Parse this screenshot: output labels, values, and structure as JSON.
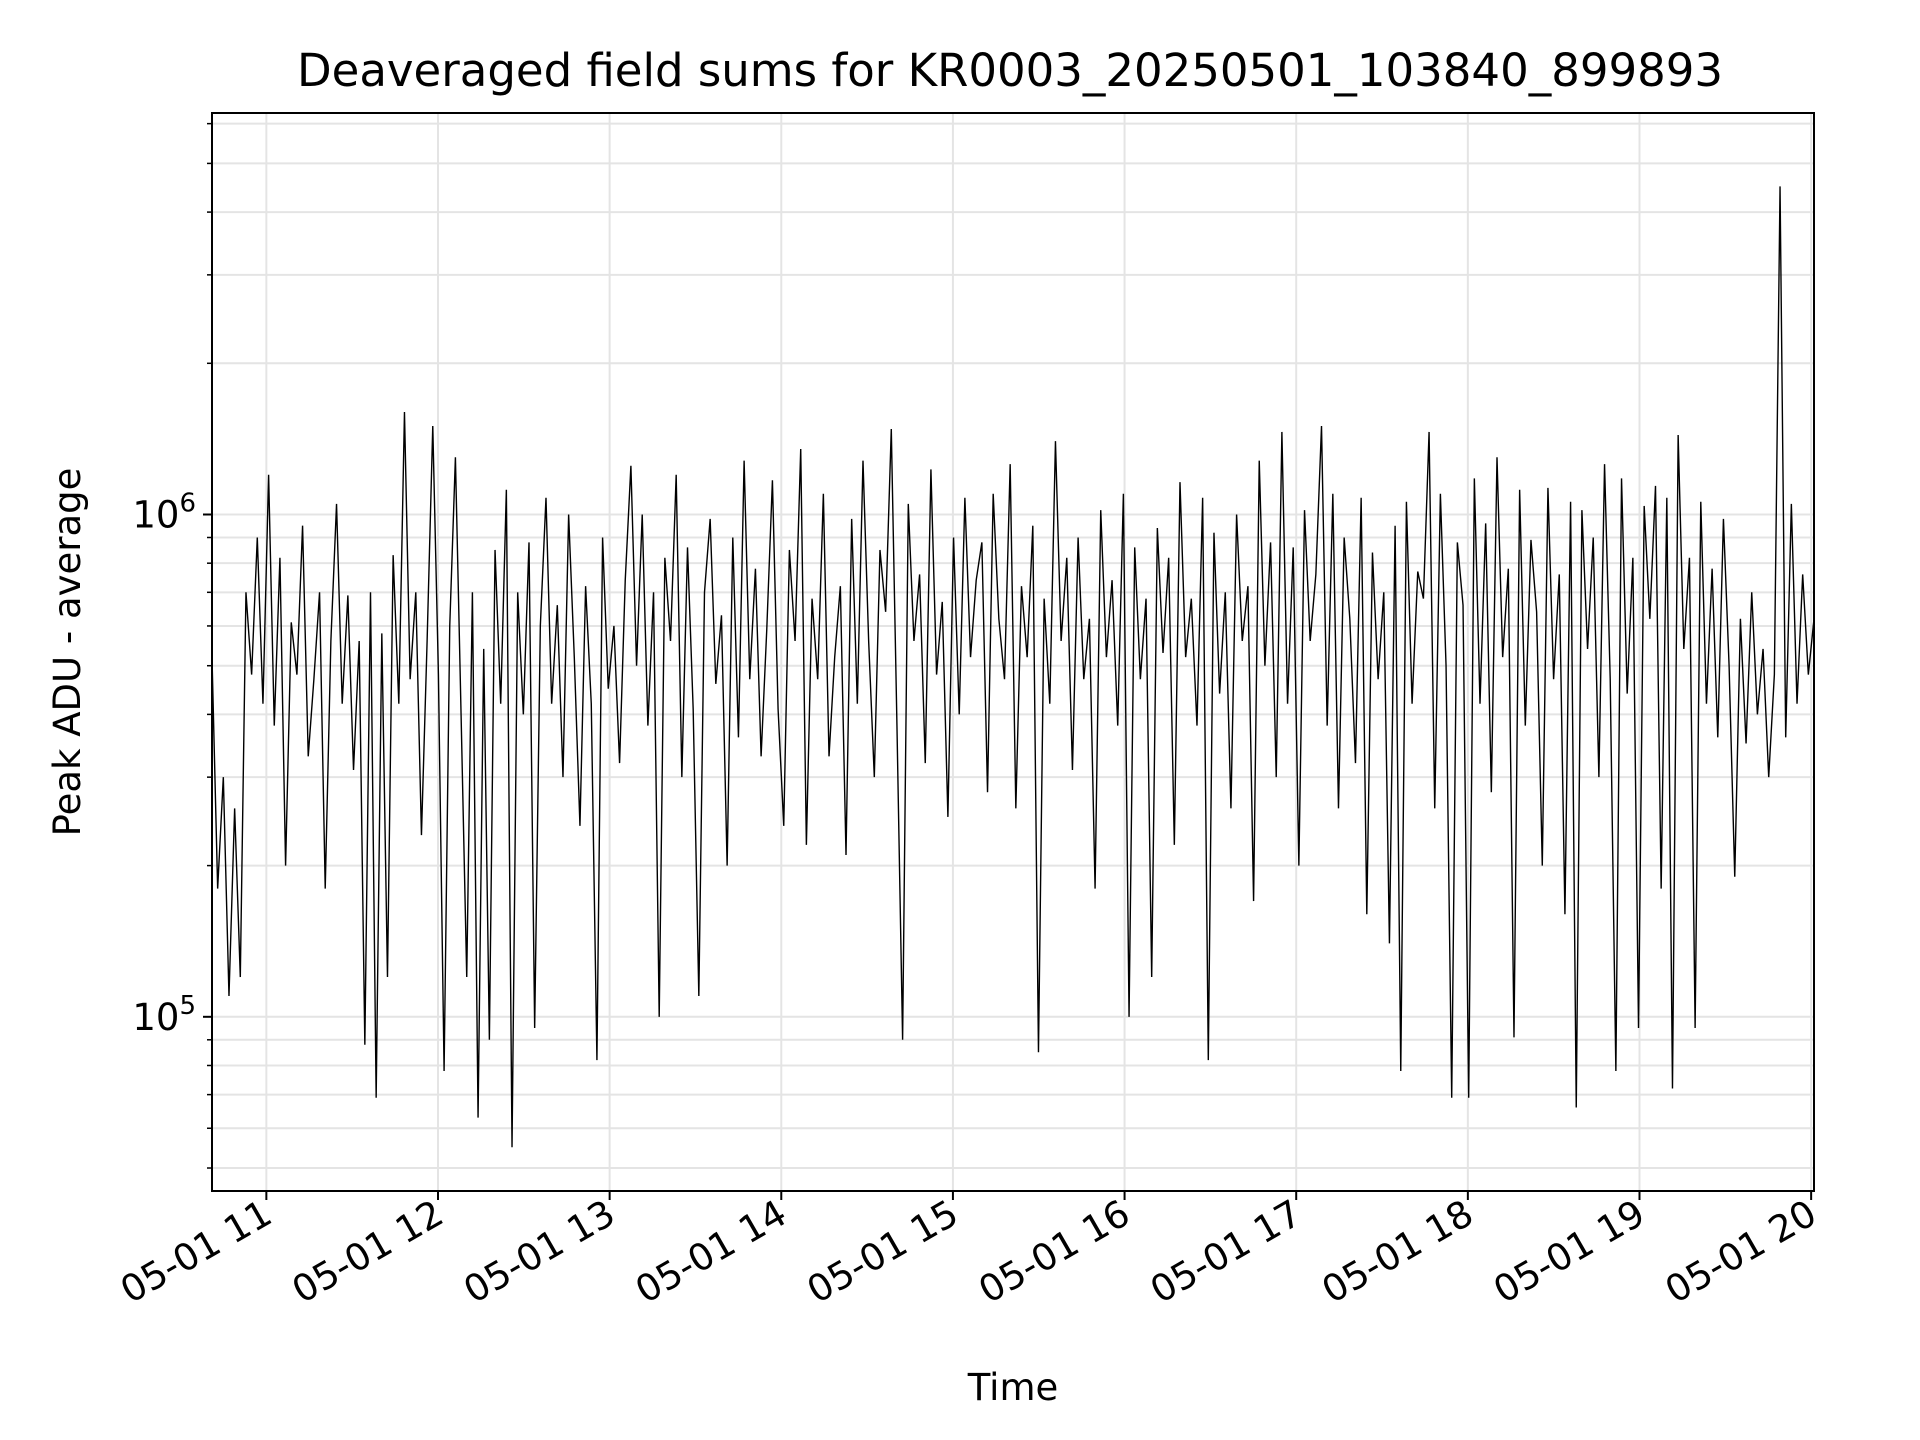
{
  "chart_data": {
    "type": "line",
    "title": "Deaveraged field sums for KR0003_20250501_103840_899893",
    "xlabel": "Time",
    "ylabel": "Peak ADU - average",
    "x_tick_labels": [
      "05-01 11",
      "05-01 12",
      "05-01 13",
      "05-01 14",
      "05-01 15",
      "05-01 16",
      "05-01 17",
      "05-01 18",
      "05-01 19",
      "05-01 20"
    ],
    "y_tick_base": "10",
    "y_tick_exponents": [
      "5",
      "6"
    ],
    "y_scale": "log",
    "xlim": [
      "2025-05-01 10:41",
      "2025-05-01 20:01"
    ],
    "ylim": [
      45000,
      6300000
    ],
    "grid": true,
    "line_color": "#000000",
    "series": [
      {
        "x_start": "2025-05-01 10:41",
        "x_end": "2025-05-01 20:01",
        "values": [
          520000,
          180000,
          300000,
          110000,
          260000,
          120000,
          700000,
          480000,
          900000,
          420000,
          1200000,
          380000,
          820000,
          200000,
          610000,
          480000,
          950000,
          330000,
          470000,
          700000,
          180000,
          560000,
          1050000,
          420000,
          690000,
          310000,
          560000,
          88000,
          700000,
          69000,
          580000,
          120000,
          830000,
          420000,
          1600000,
          470000,
          700000,
          230000,
          560000,
          1500000,
          480000,
          78000,
          600000,
          1300000,
          400000,
          120000,
          700000,
          63000,
          540000,
          90000,
          850000,
          420000,
          1120000,
          55000,
          700000,
          400000,
          880000,
          95000,
          600000,
          1080000,
          420000,
          660000,
          300000,
          1000000,
          520000,
          240000,
          720000,
          420000,
          82000,
          900000,
          450000,
          600000,
          320000,
          740000,
          1250000,
          500000,
          1000000,
          380000,
          700000,
          100000,
          820000,
          560000,
          1200000,
          300000,
          860000,
          410000,
          110000,
          700000,
          980000,
          460000,
          630000,
          200000,
          900000,
          360000,
          1280000,
          470000,
          780000,
          330000,
          590000,
          1170000,
          410000,
          240000,
          850000,
          560000,
          1350000,
          220000,
          680000,
          470000,
          1100000,
          330000,
          520000,
          720000,
          210000,
          980000,
          420000,
          1280000,
          560000,
          300000,
          850000,
          640000,
          1480000,
          380000,
          90000,
          1050000,
          560000,
          760000,
          320000,
          1230000,
          480000,
          670000,
          250000,
          900000,
          400000,
          1080000,
          520000,
          740000,
          880000,
          280000,
          1100000,
          620000,
          470000,
          1260000,
          260000,
          720000,
          520000,
          950000,
          85000,
          680000,
          420000,
          1400000,
          560000,
          820000,
          310000,
          900000,
          470000,
          620000,
          180000,
          1020000,
          520000,
          740000,
          380000,
          1100000,
          100000,
          860000,
          470000,
          680000,
          120000,
          940000,
          530000,
          820000,
          220000,
          1160000,
          520000,
          680000,
          380000,
          1080000,
          82000,
          920000,
          440000,
          700000,
          260000,
          1000000,
          560000,
          720000,
          170000,
          1280000,
          500000,
          880000,
          300000,
          1460000,
          420000,
          860000,
          200000,
          1020000,
          560000,
          760000,
          1500000,
          380000,
          1100000,
          260000,
          900000,
          620000,
          320000,
          1080000,
          160000,
          840000,
          470000,
          700000,
          140000,
          950000,
          78000,
          1060000,
          420000,
          770000,
          680000,
          1460000,
          260000,
          1100000,
          500000,
          69000,
          880000,
          660000,
          69000,
          1180000,
          420000,
          960000,
          280000,
          1300000,
          520000,
          780000,
          91000,
          1120000,
          380000,
          890000,
          640000,
          200000,
          1130000,
          470000,
          760000,
          160000,
          1060000,
          66000,
          1020000,
          540000,
          900000,
          300000,
          1260000,
          470000,
          78000,
          1180000,
          440000,
          820000,
          95000,
          1040000,
          620000,
          1140000,
          180000,
          1080000,
          72000,
          1440000,
          540000,
          820000,
          95000,
          1060000,
          420000,
          780000,
          360000,
          980000,
          500000,
          190000,
          620000,
          350000,
          700000,
          400000,
          540000,
          300000,
          480000,
          4500000,
          360000,
          1050000,
          420000,
          760000,
          480000,
          620000
        ]
      }
    ]
  }
}
